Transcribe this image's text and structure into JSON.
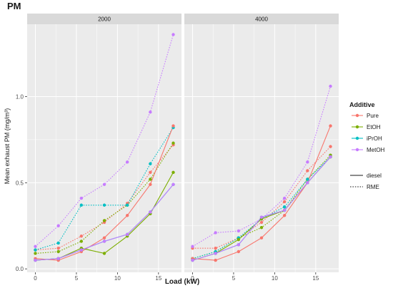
{
  "chart_data": {
    "type": "line",
    "title": "PM",
    "xlabel": "Load (kW)",
    "ylabel": "Mean exhaust PM (mg/m³)",
    "xlim": [
      -1,
      17.8
    ],
    "ylim": [
      -0.02,
      1.42
    ],
    "xticks": [
      0,
      5,
      10,
      15
    ],
    "yticks": [
      0.0,
      0.5,
      1.0
    ],
    "ytick_labels": [
      "0.0",
      "0.5",
      "1.0"
    ],
    "grid": true,
    "legend_position": "right",
    "x_values": [
      0,
      2.8,
      5.6,
      8.4,
      11.2,
      14,
      16.8
    ],
    "additive_legend": {
      "title": "Additive",
      "entries": [
        {
          "name": "Pure",
          "color": "#f8766d"
        },
        {
          "name": "EtOH",
          "color": "#7cae00"
        },
        {
          "name": "iPrOH",
          "color": "#00bfc4"
        },
        {
          "name": "MetOH",
          "color": "#c77cff"
        }
      ]
    },
    "fuel_legend": {
      "entries": [
        {
          "name": "diesel",
          "line": "solid"
        },
        {
          "name": "RME",
          "line": "dotted"
        }
      ]
    },
    "panels": [
      {
        "label": "2000",
        "series": [
          {
            "additive": "Pure",
            "fuel": "diesel",
            "values": [
              0.06,
              0.05,
              0.1,
              0.18,
              0.31,
              0.49,
              0.83
            ]
          },
          {
            "additive": "EtOH",
            "fuel": "diesel",
            "values": [
              0.05,
              0.06,
              0.12,
              0.09,
              0.19,
              0.32,
              0.56
            ]
          },
          {
            "additive": "iPrOH",
            "fuel": "diesel",
            "values": [
              0.05,
              0.06,
              0.11,
              0.16,
              0.2,
              0.33,
              0.49
            ]
          },
          {
            "additive": "MetOH",
            "fuel": "diesel",
            "values": [
              0.05,
              0.06,
              0.11,
              0.16,
              0.2,
              0.33,
              0.49
            ]
          },
          {
            "additive": "Pure",
            "fuel": "RME",
            "values": [
              0.11,
              0.12,
              0.19,
              0.27,
              0.38,
              0.56,
              0.72
            ]
          },
          {
            "additive": "EtOH",
            "fuel": "RME",
            "values": [
              0.09,
              0.1,
              0.16,
              0.28,
              0.37,
              0.52,
              0.73
            ]
          },
          {
            "additive": "iPrOH",
            "fuel": "RME",
            "values": [
              0.11,
              0.15,
              0.37,
              0.37,
              0.37,
              0.61,
              0.82
            ]
          },
          {
            "additive": "MetOH",
            "fuel": "RME",
            "values": [
              0.13,
              0.25,
              0.41,
              0.49,
              0.62,
              0.91,
              1.36
            ]
          }
        ]
      },
      {
        "label": "4000",
        "series": [
          {
            "additive": "Pure",
            "fuel": "diesel",
            "values": [
              0.06,
              0.05,
              0.1,
              0.18,
              0.31,
              0.5,
              0.83
            ]
          },
          {
            "additive": "EtOH",
            "fuel": "diesel",
            "values": [
              0.05,
              0.09,
              0.17,
              0.29,
              0.34,
              0.5,
              0.65
            ]
          },
          {
            "additive": "iPrOH",
            "fuel": "diesel",
            "values": [
              0.05,
              0.09,
              0.14,
              0.3,
              0.34,
              0.5,
              0.65
            ]
          },
          {
            "additive": "MetOH",
            "fuel": "diesel",
            "values": [
              0.05,
              0.09,
              0.14,
              0.3,
              0.34,
              0.5,
              0.65
            ]
          },
          {
            "additive": "Pure",
            "fuel": "RME",
            "values": [
              0.12,
              0.12,
              0.18,
              0.27,
              0.39,
              0.57,
              0.71
            ]
          },
          {
            "additive": "EtOH",
            "fuel": "RME",
            "values": [
              0.06,
              0.1,
              0.18,
              0.24,
              0.34,
              0.52,
              0.66
            ]
          },
          {
            "additive": "iPrOH",
            "fuel": "RME",
            "values": [
              0.06,
              0.1,
              0.18,
              0.29,
              0.36,
              0.52,
              0.65
            ]
          },
          {
            "additive": "MetOH",
            "fuel": "RME",
            "values": [
              0.13,
              0.21,
              0.22,
              0.29,
              0.41,
              0.62,
              1.06
            ]
          }
        ]
      }
    ]
  }
}
